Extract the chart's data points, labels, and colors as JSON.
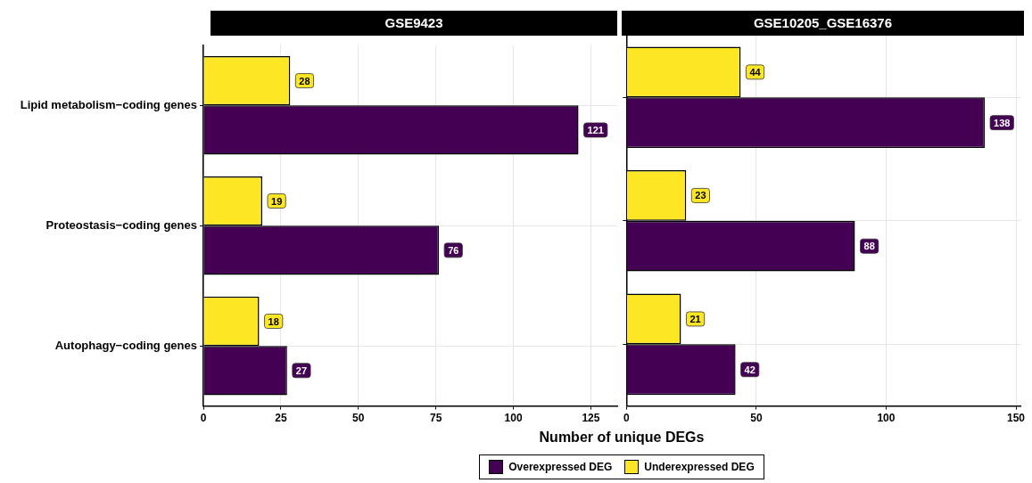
{
  "chart_data": [
    {
      "type": "bar",
      "orientation": "horizontal",
      "title": "GSE9423",
      "xlabel": "Number of unique DEGs",
      "categories": [
        "Lipid metabolism−coding genes",
        "Proteostasis−coding genes",
        "Autophagy−coding genes"
      ],
      "series": [
        {
          "name": "Overexpressed DEG",
          "color": "#440154",
          "values": [
            121,
            76,
            27
          ]
        },
        {
          "name": "Underexpressed DEG",
          "color": "#fde725",
          "values": [
            28,
            19,
            18
          ]
        }
      ],
      "xlim": [
        0,
        133.5
      ],
      "xticks": [
        0,
        25,
        50,
        75,
        100,
        125
      ],
      "grid": true,
      "data_labels": true,
      "legend": "bottom"
    },
    {
      "type": "bar",
      "orientation": "horizontal",
      "title": "GSE10205_GSE16376",
      "categories": [
        null,
        null,
        null
      ],
      "series": [
        {
          "color": "#440154",
          "values": [
            138,
            88,
            42
          ]
        },
        {
          "color": "#fde725",
          "values": [
            44,
            23,
            21
          ]
        }
      ],
      "xlim": [
        0,
        152
      ],
      "xticks": [
        0,
        50,
        100,
        150
      ],
      "grid": true,
      "data_labels": true,
      "tick_labels": "x"
    }
  ]
}
